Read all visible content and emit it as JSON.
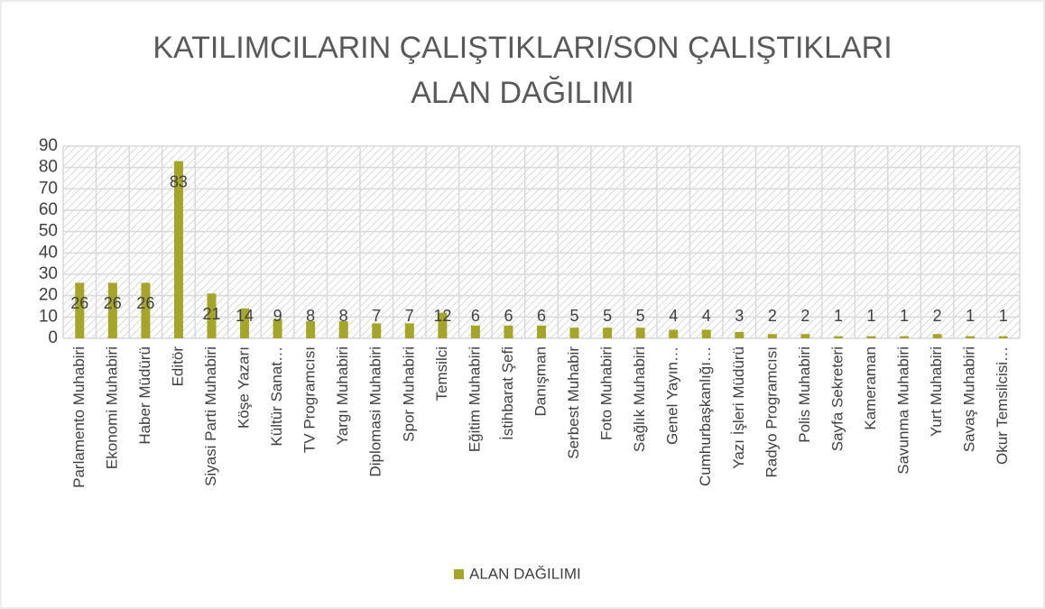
{
  "chart_data": {
    "type": "bar",
    "title": [
      "KATILIMCILARIN ÇALIŞTIKLARI/SON ÇALIŞTIKLARI",
      "ALAN DAĞILIMI"
    ],
    "categories": [
      "Parlamento Muhabiri",
      "Ekonomi Muhabiri",
      "Haber Müdürü",
      "Editör",
      "Siyasi Parti Muhabiri",
      "Köşe Yazarı",
      "Kültür Sanat…",
      "TV Programcısı",
      "Yargı Muhabiri",
      "Diplomasi Muhabiri",
      "Spor Muhabiri",
      "Temsilci",
      "Eğitim Muhabiri",
      "İstihbarat Şefi",
      "Danışman",
      "Serbest Muhabir",
      "Foto Muhabiri",
      "Sağlık Muhabiri",
      "Genel Yayın…",
      "Cumhurbaşkanlığı…",
      "Yazı İşleri Müdürü",
      "Radyo Programcısı",
      "Polis Muhabiri",
      "Sayfa Sekreteri",
      "Kameraman",
      "Savunma Muhabiri",
      "Yurt Muhabiri",
      "Savaş Muhabiri",
      "Okur Temsilcisi…"
    ],
    "series": [
      {
        "name": "ALAN DAĞILIMI",
        "color": "#a5a52a",
        "values": [
          26,
          26,
          26,
          83,
          21,
          14,
          9,
          8,
          8,
          7,
          7,
          12,
          6,
          6,
          6,
          5,
          5,
          5,
          4,
          4,
          3,
          2,
          2,
          1,
          1,
          1,
          2,
          1,
          1
        ]
      }
    ],
    "ylim": [
      0,
      90
    ],
    "yticks": [
      0,
      10,
      20,
      30,
      40,
      50,
      60,
      70,
      80,
      90
    ],
    "grid": true,
    "legend": "bottom"
  }
}
